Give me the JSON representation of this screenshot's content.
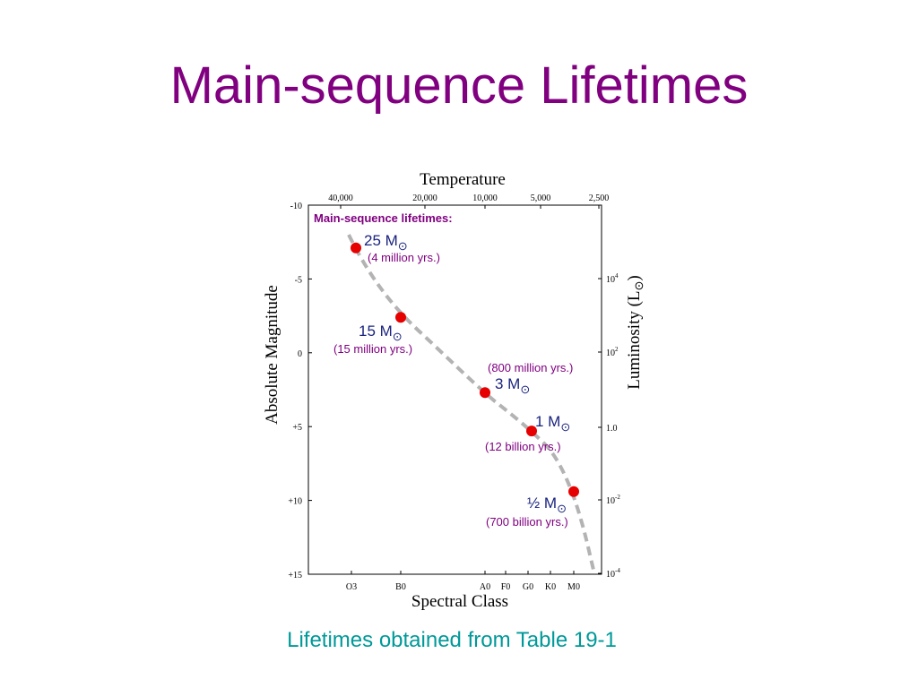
{
  "slide": {
    "title": "Main-sequence Lifetimes",
    "caption": "Lifetimes obtained from Table 19-1"
  },
  "colors": {
    "title": "#800080",
    "caption": "#009999",
    "point": "#e60000",
    "mass_label": "#1a237e",
    "lifetime_label": "#800080",
    "curve": "#b3b3b3"
  },
  "chart_data": {
    "type": "scatter",
    "title": "Main-sequence lifetimes:",
    "top_axis_title": "Temperature",
    "top_ticks": [
      "40,000",
      "20,000",
      "10,000",
      "5,000",
      "2,500"
    ],
    "bottom_axis_title": "Spectral Class",
    "bottom_ticks": [
      "O3",
      "B0",
      "A0",
      "F0",
      "G0",
      "K0",
      "M0"
    ],
    "left_axis_title": "Absolute Magnitude",
    "left_ticks": [
      "-10",
      "-5",
      "0",
      "+5",
      "+10",
      "+15"
    ],
    "left_range": [
      -10,
      15
    ],
    "right_axis_title": "Luminosity (L",
    "right_axis_symbol": "⊙",
    "right_axis_close": ")",
    "right_ticks": [
      {
        "base": "10",
        "exp": "4"
      },
      {
        "base": "10",
        "exp": "2"
      },
      {
        "base": "1.0",
        "exp": ""
      },
      {
        "base": "10",
        "exp": "-2"
      },
      {
        "base": "10",
        "exp": "-4"
      }
    ],
    "main_sequence_curve": [
      {
        "class": "O3",
        "mag": -8.0
      },
      {
        "class": "B0",
        "mag": -2.0
      },
      {
        "class": "A0",
        "mag": 2.5
      },
      {
        "class": "G0",
        "mag": 5.0
      },
      {
        "class": "M0",
        "mag": 10.0
      },
      {
        "class": "M5",
        "mag": 14.7
      }
    ],
    "points": [
      {
        "spectral_class": "O6",
        "abs_mag": -7.1,
        "mass": "25",
        "lifetime": "(4 million yrs.)"
      },
      {
        "spectral_class": "B0",
        "abs_mag": -2.4,
        "mass": "15",
        "lifetime": "(15 million yrs.)"
      },
      {
        "spectral_class": "A0",
        "abs_mag": 2.7,
        "mass": "3",
        "lifetime": "(800 million yrs.)"
      },
      {
        "spectral_class": "G2",
        "abs_mag": 5.3,
        "mass": "1",
        "lifetime": "(12 billion yrs.)"
      },
      {
        "spectral_class": "M0",
        "abs_mag": 9.4,
        "mass": "½",
        "lifetime": "(700 billion yrs.)"
      }
    ],
    "mass_unit": "M",
    "mass_unit_subscript": "⊙"
  }
}
